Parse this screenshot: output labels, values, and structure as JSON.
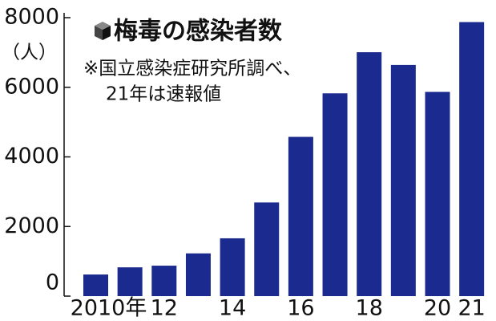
{
  "chart_data": {
    "type": "bar",
    "title": "梅毒の感染者数",
    "y_label": "（人）",
    "annotations": [
      "※国立感染症研究所調べ、",
      "21年は速報値"
    ],
    "categories": [
      "2010年",
      null,
      "12",
      null,
      "14",
      null,
      "16",
      null,
      "18",
      null,
      "20",
      "21"
    ],
    "values": [
      621,
      827,
      875,
      1228,
      1661,
      2690,
      4575,
      5826,
      7007,
      6642,
      5867,
      7873
    ],
    "color": "#1b2a8f",
    "ylim": [
      0,
      8000
    ],
    "yticks": [
      0,
      2000,
      4000,
      6000,
      8000
    ],
    "grid": false
  }
}
